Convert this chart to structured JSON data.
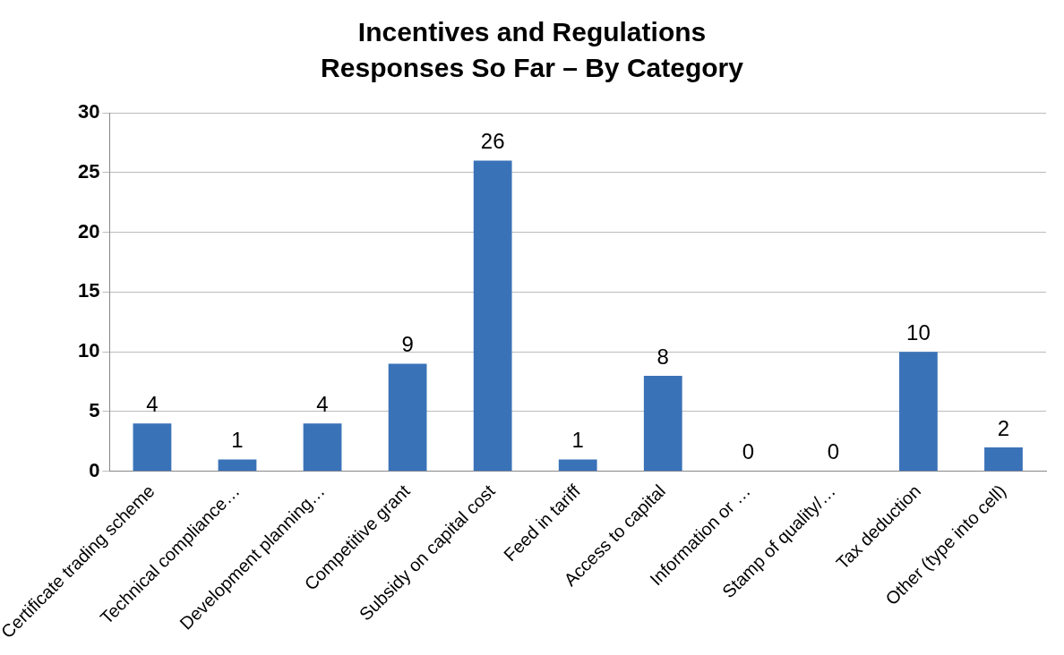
{
  "chart_data": {
    "type": "bar",
    "title": "Incentives and Regulations",
    "subtitle": "Responses So Far – By Category",
    "categories": [
      "Certificate trading scheme",
      "Technical compliance…",
      "Development planning…",
      "Competitive grant",
      "Subsidy on capital cost",
      "Feed in tariff",
      "Access to capital",
      "Information or …",
      "Stamp of quality/…",
      "Tax deduction",
      "Other (type into cell)"
    ],
    "values": [
      4,
      1,
      4,
      9,
      26,
      1,
      8,
      0,
      0,
      10,
      2
    ],
    "color": "#3a72b8",
    "ylim": [
      0,
      30
    ],
    "yticks": [
      0,
      5,
      10,
      15,
      20,
      25,
      30
    ],
    "grid": "y",
    "legend": false,
    "data_labels": true
  }
}
